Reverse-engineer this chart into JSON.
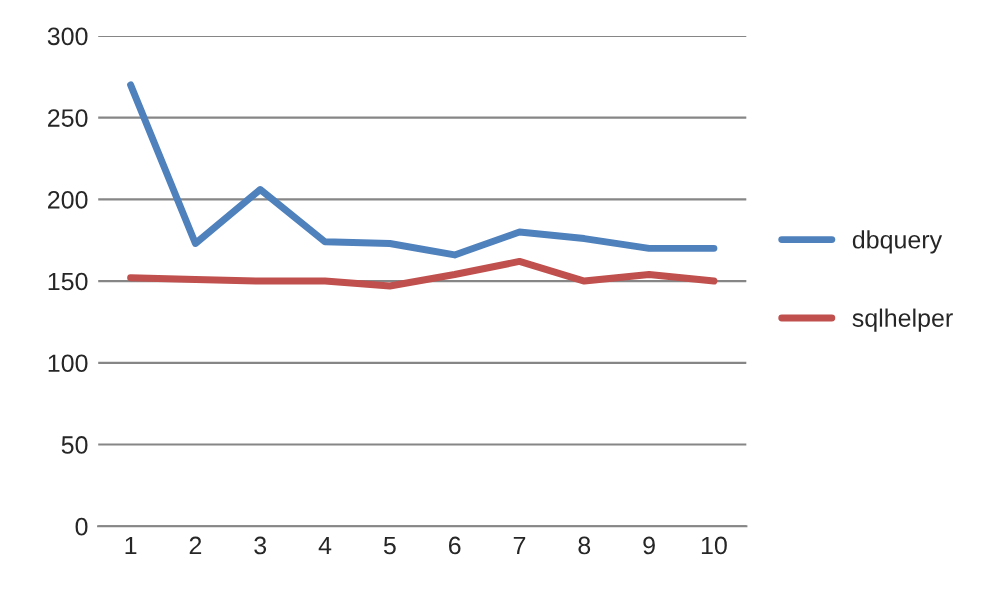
{
  "chart_data": {
    "type": "line",
    "categories": [
      "1",
      "2",
      "3",
      "4",
      "5",
      "6",
      "7",
      "8",
      "9",
      "10"
    ],
    "series": [
      {
        "name": "dbquery",
        "color": "#4f81bd",
        "values": [
          270,
          173,
          206,
          174,
          173,
          166,
          180,
          176,
          170,
          170
        ]
      },
      {
        "name": "sqlhelper",
        "color": "#c0504d",
        "values": [
          152,
          151,
          150,
          150,
          147,
          154,
          162,
          150,
          154,
          150
        ]
      }
    ],
    "ylim": [
      0,
      300
    ],
    "yticks": [
      0,
      50,
      100,
      150,
      200,
      250,
      300
    ],
    "grid": "y",
    "legend": "right",
    "marker": "none",
    "line_style": "solid"
  }
}
